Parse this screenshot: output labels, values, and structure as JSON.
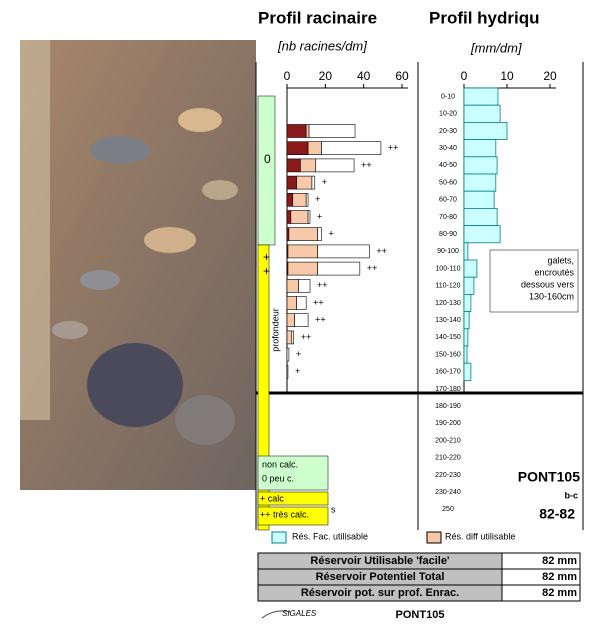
{
  "chart_data": [
    {
      "type": "bar",
      "orientation": "horizontal",
      "stacked": true,
      "title": "Profil racinaire",
      "subtitle": "[nb racines/dm]",
      "categories": [
        null,
        null,
        null,
        null,
        null,
        null,
        null,
        null,
        null,
        null,
        null,
        null,
        null,
        null,
        null,
        null,
        null
      ],
      "series": [
        {
          "color": "#8b1a1a",
          "values": [
            null,
            null,
            10,
            11,
            7,
            5,
            3,
            2,
            1,
            0.5,
            0.5,
            null,
            null,
            null,
            null,
            null,
            null
          ]
        },
        {
          "color": "#f7c9a8",
          "values": [
            null,
            null,
            1.5,
            7,
            8,
            8,
            7,
            9,
            15,
            15.5,
            15.5,
            6,
            5,
            4,
            2.5,
            null,
            null
          ]
        },
        {
          "color": "#ffffff",
          "values": [
            null,
            null,
            24,
            31,
            20,
            1.5,
            1,
            1,
            2,
            27,
            22,
            6,
            5,
            7,
            1,
            1,
            0.5
          ]
        }
      ],
      "intensity_labels": [
        null,
        null,
        null,
        "++",
        "++",
        "+",
        "+",
        "+",
        "+",
        "++",
        "++",
        "++",
        "++",
        "++",
        "++",
        "+",
        "+"
      ],
      "xlim": [
        0,
        60
      ],
      "xticks": [
        0,
        20,
        40,
        60
      ]
    },
    {
      "type": "bar",
      "orientation": "horizontal",
      "title": "Profil hydriqu",
      "subtitle": "[mm/dm]",
      "categories": [
        "0-10",
        "10-20",
        "20-30",
        "30-40",
        "40-50",
        "50-60",
        "60-70",
        "70-80",
        "80-90",
        "90-100",
        "100-110",
        "110-120",
        "120-130",
        "130-140",
        "140-150",
        "150-160",
        "160-170",
        "170-180",
        "180-190",
        "190-200",
        "200-210",
        "210-220",
        "220-230",
        "230-240",
        "250"
      ],
      "color": "#ccffff",
      "values": [
        7.9,
        8.4,
        10,
        7.4,
        7.7,
        7.4,
        7,
        7.7,
        8.4,
        0.9,
        3,
        2.3,
        1.6,
        1.2,
        0.9,
        0.7,
        1.6,
        null,
        null,
        null,
        null,
        null,
        null,
        null,
        null
      ],
      "xlim": [
        0,
        20
      ],
      "xticks": [
        0,
        10,
        20
      ]
    }
  ],
  "calc_column": {
    "top_label": "0",
    "mid_labels": [
      "+",
      "+"
    ],
    "axis_label": "profondeur"
  },
  "calc_legend": [
    "non calc.",
    "0 peu c.",
    "+ calc",
    "++ très calc.",
    "s"
  ],
  "notes": [
    "galets,",
    "encroutés",
    "dessous vers",
    "130-160cm"
  ],
  "site": {
    "code": "PONT105",
    "type": "b-c",
    "depths": "82-82"
  },
  "legend": [
    {
      "label": "Rés. Fac. utilisable"
    },
    {
      "label": "Rés. diff utilisable"
    }
  ],
  "table": {
    "rows": [
      [
        "Réservoir Utilisable 'facile'",
        "82 mm"
      ],
      [
        "Réservoir Potentiel Total",
        "82 mm"
      ],
      [
        "Réservoir pot. sur prof. Enrac.",
        "82 mm"
      ]
    ]
  },
  "footer": {
    "logo": "SIGALES",
    "code": "PONT105"
  }
}
